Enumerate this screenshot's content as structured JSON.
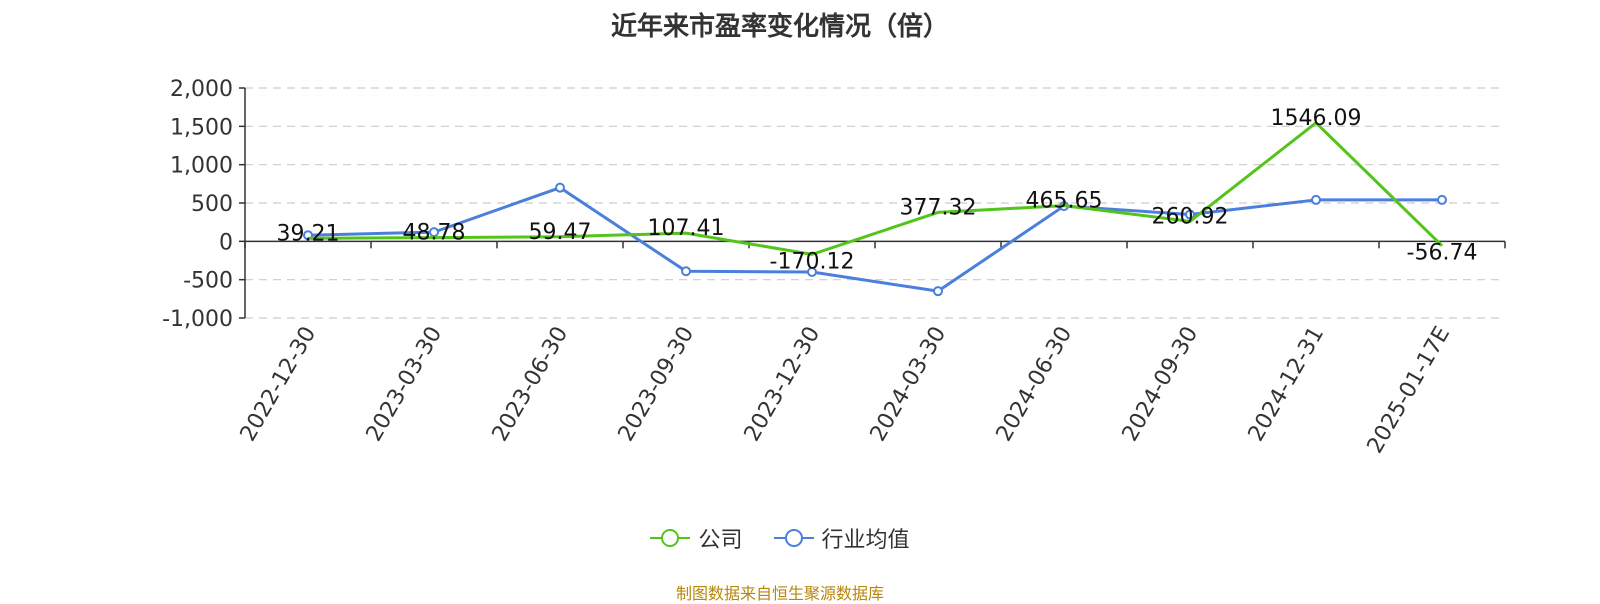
{
  "chart_data": {
    "type": "line",
    "title": "近年来市盈率变化情况（倍）",
    "categories": [
      "2022-12-30",
      "2023-03-30",
      "2023-06-30",
      "2023-09-30",
      "2023-12-30",
      "2024-03-30",
      "2024-06-30",
      "2024-09-30",
      "2024-12-31",
      "2025-01-17E"
    ],
    "series": [
      {
        "name": "公司",
        "color": "#52c41a",
        "values": [
          39.21,
          48.78,
          59.47,
          107.41,
          -170.12,
          377.32,
          465.65,
          260.92,
          1546.09,
          -56.74
        ],
        "labels": [
          "39.21",
          "48.78",
          "59.47",
          "107.41",
          "-170.12",
          "377.32",
          "465.65",
          "260.92",
          "1546.09",
          "-56.74"
        ]
      },
      {
        "name": "行业均值",
        "color": "#4a7fdc",
        "values": [
          80,
          120,
          700,
          -390,
          -400,
          -650,
          460,
          350,
          540,
          540
        ]
      }
    ],
    "ylim": [
      -1000,
      2000
    ],
    "yticks": [
      2000,
      1500,
      1000,
      500,
      0,
      -500,
      -1000
    ],
    "ytick_labels": [
      "2,000",
      "1,500",
      "1,000",
      "500",
      "0",
      "-500",
      "-1,000"
    ],
    "grid": true,
    "legend_position": "bottom"
  },
  "legend": {
    "company": "公司",
    "industry": "行业均值"
  },
  "source": "制图数据来自恒生聚源数据库"
}
